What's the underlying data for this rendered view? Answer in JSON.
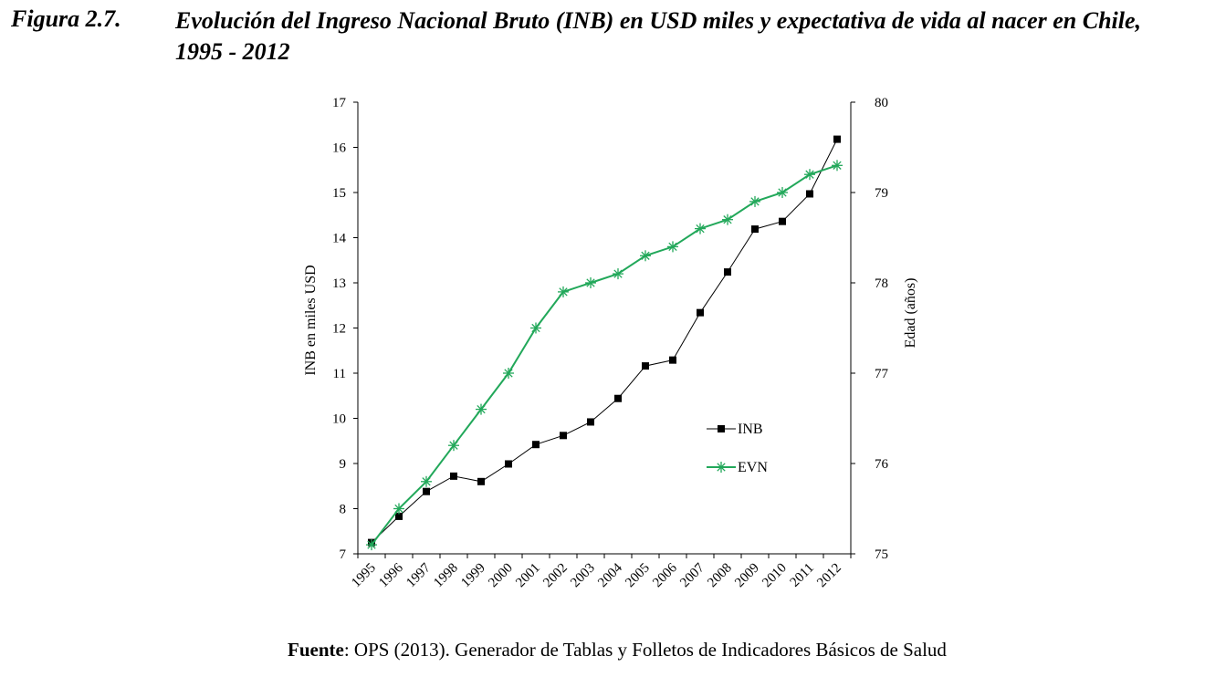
{
  "figure": {
    "number": "Figura 2.7.",
    "title": "Evolución del Ingreso Nacional Bruto (INB) en USD miles y expectativa de vida al nacer en Chile, 1995 - 2012"
  },
  "source": {
    "label": "Fuente",
    "text": ": OPS (2013). Generador de Tablas y Folletos de Indicadores Básicos de Salud"
  },
  "chart_data": {
    "type": "line",
    "x": [
      "1995",
      "1996",
      "1997",
      "1998",
      "1999",
      "2000",
      "2001",
      "2002",
      "2003",
      "2004",
      "2005",
      "2006",
      "2007",
      "2008",
      "2009",
      "2010",
      "2011",
      "2012"
    ],
    "y_left": {
      "label": "INB en miles USD",
      "range": [
        7,
        17
      ],
      "ticks": [
        "7",
        "8",
        "9",
        "10",
        "11",
        "12",
        "13",
        "14",
        "15",
        "16",
        "17"
      ]
    },
    "y_right": {
      "label": "Edad (años)",
      "range": [
        75,
        80
      ],
      "ticks": [
        "75",
        "76",
        "77",
        "78",
        "79",
        "80"
      ]
    },
    "series": [
      {
        "name": "INB",
        "axis": "left",
        "color": "#000000",
        "marker": "square",
        "values": [
          7.25,
          7.83,
          8.38,
          8.72,
          8.6,
          8.99,
          9.42,
          9.62,
          9.92,
          10.44,
          11.16,
          11.29,
          12.34,
          13.24,
          14.19,
          14.36,
          14.97,
          16.18
        ]
      },
      {
        "name": "EVN",
        "axis": "right",
        "color": "#22a85a",
        "marker": "asterisk",
        "values": [
          75.1,
          75.5,
          75.8,
          76.2,
          76.6,
          77.0,
          77.5,
          77.9,
          78.0,
          78.1,
          78.3,
          78.4,
          78.6,
          78.7,
          78.9,
          79.0,
          79.2,
          79.3
        ]
      }
    ],
    "legend": "inside-bottom-right",
    "grid": false
  }
}
